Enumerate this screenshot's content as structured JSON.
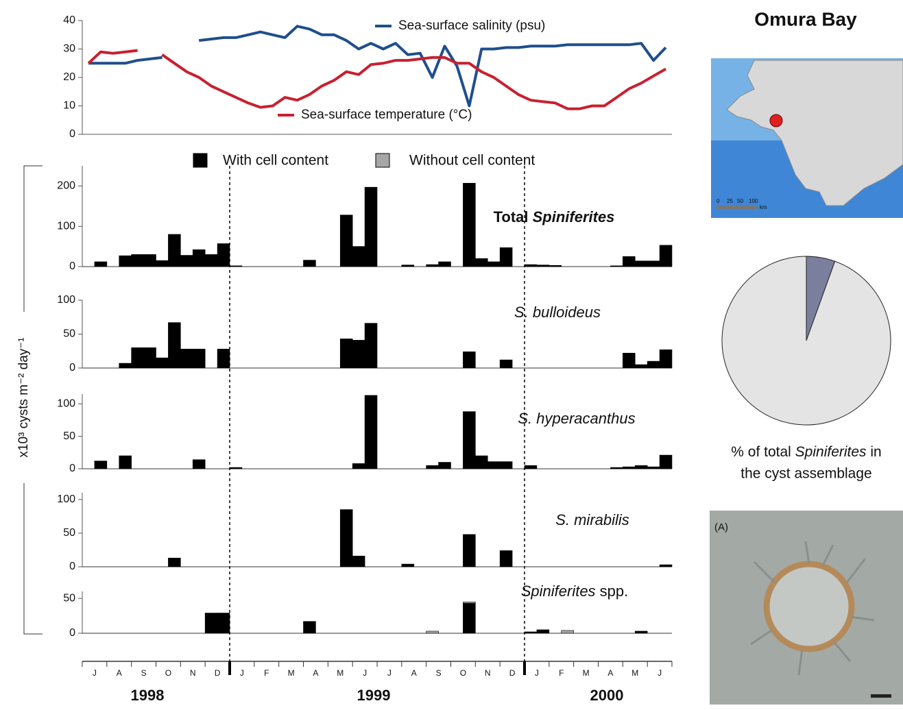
{
  "chart_data": [
    {
      "type": "line",
      "ylim": [
        0,
        40
      ],
      "yticks": [
        0,
        10,
        20,
        30,
        40
      ],
      "series": [
        {
          "name": "Sea-surface salinity (psu)",
          "color": "#1f4e8c",
          "values": [
            25,
            25,
            25,
            25,
            26,
            26.5,
            27,
            null,
            null,
            33,
            33.5,
            34,
            34,
            35,
            36,
            35,
            34,
            38,
            37,
            35,
            35,
            33,
            30,
            32,
            30,
            32,
            28,
            28.5,
            20,
            31,
            24,
            10,
            30,
            30,
            30.5,
            30.5,
            31,
            31,
            31,
            31.5,
            31.5,
            31.5,
            31.5,
            31.5,
            31.5,
            32,
            26,
            30.5
          ]
        },
        {
          "name": "Sea-surface temperature (°C)",
          "color": "#c8202e",
          "values": [
            25,
            29,
            28.5,
            29,
            29.5,
            null,
            28,
            25,
            22,
            20,
            17,
            15,
            13,
            11,
            9.5,
            10,
            13,
            12,
            14,
            17,
            19,
            22,
            21,
            24.5,
            25,
            26,
            26,
            26.5,
            27,
            27,
            25,
            25,
            22,
            20,
            17,
            14,
            12,
            11.5,
            11,
            9,
            9,
            10,
            10,
            13,
            16,
            18,
            20.5,
            23
          ]
        }
      ]
    },
    {
      "type": "bar",
      "categories": [
        "J",
        null,
        "A",
        null,
        "S",
        null,
        "O",
        null,
        "N",
        null,
        "D",
        null,
        "J",
        null,
        "F",
        null,
        "M",
        null,
        "A",
        null,
        "M",
        null,
        "J",
        null,
        "J",
        null,
        "A",
        null,
        "S",
        null,
        "O",
        null,
        "N",
        null,
        "D",
        null,
        "J",
        null,
        "F",
        null,
        "M",
        null,
        "A",
        null,
        "M",
        null,
        "J",
        null
      ],
      "years": [
        "1998",
        "1999",
        "2000"
      ],
      "y_label": "x10³ cysts m⁻² day⁻¹",
      "series": [
        {
          "name": "With cell content",
          "color": "#000000"
        },
        {
          "name": "Without cell content",
          "color": "#a6a6a6"
        }
      ],
      "panels": [
        {
          "label": [
            "Total",
            "Spiniferites"
          ],
          "label_italic": [
            false,
            true
          ],
          "label_bold": true,
          "ylim": [
            0,
            250
          ],
          "yticks": [
            0,
            100,
            200
          ],
          "series": [
            {
              "values": [
                0,
                12,
                0,
                27,
                30,
                30,
                15,
                80,
                28,
                42,
                30,
                57,
                2,
                0,
                0,
                0,
                0,
                0,
                16,
                0,
                0,
                128,
                50,
                197,
                0,
                0,
                4,
                0,
                5,
                12,
                0,
                207,
                20,
                12,
                47,
                0,
                5,
                4,
                3,
                0,
                0,
                0,
                0,
                2,
                25,
                14,
                14,
                53
              ]
            }
          ]
        },
        {
          "label": [
            "S. bulloideus"
          ],
          "label_italic": [
            true
          ],
          "label_bold": false,
          "ylim": [
            0,
            100
          ],
          "yticks": [
            0,
            50,
            100
          ],
          "series": [
            {
              "values": [
                0,
                0,
                0,
                7,
                30,
                30,
                15,
                67,
                28,
                28,
                0,
                28,
                0,
                0,
                0,
                0,
                0,
                0,
                0,
                0,
                0,
                43,
                41,
                66,
                0,
                0,
                0,
                0,
                0,
                0,
                0,
                24,
                0,
                0,
                12,
                0,
                0,
                0,
                0,
                0,
                0,
                0,
                0,
                0,
                22,
                5,
                10,
                27
              ]
            }
          ]
        },
        {
          "label": [
            "S. hyperacanthus"
          ],
          "label_italic": [
            true
          ],
          "label_bold": false,
          "ylim": [
            0,
            115
          ],
          "yticks": [
            0,
            50,
            100
          ],
          "series": [
            {
              "values": [
                0,
                12,
                0,
                20,
                0,
                0,
                0,
                0,
                0,
                14,
                0,
                0,
                2,
                0,
                0,
                0,
                0,
                0,
                0,
                0,
                0,
                0,
                8,
                113,
                0,
                0,
                0,
                0,
                5,
                10,
                0,
                88,
                20,
                11,
                11,
                0,
                5,
                0,
                0,
                0,
                0,
                0,
                0,
                2,
                3,
                5,
                3,
                21
              ]
            }
          ]
        },
        {
          "label": [
            "S. mirabilis"
          ],
          "label_italic": [
            true
          ],
          "label_bold": false,
          "ylim": [
            0,
            110
          ],
          "yticks": [
            0,
            50,
            100
          ],
          "series": [
            {
              "values": [
                0,
                0,
                0,
                0,
                0,
                0,
                0,
                13,
                0,
                0,
                0,
                0,
                0,
                0,
                0,
                0,
                0,
                0,
                0,
                0,
                0,
                85,
                16,
                0,
                0,
                0,
                4,
                0,
                0,
                0,
                0,
                48,
                0,
                0,
                24,
                0,
                0,
                0,
                0,
                0,
                0,
                0,
                0,
                0,
                0,
                0,
                0,
                3
              ]
            }
          ]
        },
        {
          "label": [
            "Spiniferites",
            "spp."
          ],
          "label_italic": [
            true,
            false
          ],
          "label_bold": false,
          "ylim": [
            0,
            60
          ],
          "yticks": [
            0,
            50
          ],
          "series": [
            {
              "values": [
                0,
                0,
                0,
                0,
                0,
                0,
                0,
                0,
                0,
                0,
                29,
                29,
                0,
                0,
                0,
                0,
                0,
                0,
                17,
                0,
                0,
                0,
                0,
                0,
                0,
                0,
                0,
                0,
                0,
                0,
                0,
                43,
                0,
                0,
                0,
                0,
                2,
                5,
                0,
                0,
                0,
                0,
                0,
                0,
                0,
                3,
                0,
                0
              ]
            },
            {
              "values": [
                0,
                0,
                0,
                0,
                0,
                0,
                0,
                0,
                0,
                0,
                0,
                0,
                0,
                0,
                0,
                0,
                0,
                0,
                0,
                0,
                0,
                0,
                0,
                0,
                0,
                0,
                0,
                0,
                3,
                0,
                0,
                2,
                0,
                0,
                0,
                0,
                0,
                0,
                0,
                4,
                0,
                0,
                0,
                0,
                0,
                0,
                0,
                0
              ]
            }
          ]
        }
      ]
    },
    {
      "type": "pie",
      "values": [
        5.5,
        94.5
      ],
      "colors": [
        "#7b7f9e",
        "#e4e4e4"
      ],
      "caption": [
        "% of total",
        "Spiniferites",
        "in",
        "the cyst assemblage"
      ]
    }
  ],
  "site": "Omura Bay",
  "photo_label": "(A)",
  "map_scale": [
    "0",
    "25",
    "50",
    "100",
    "km"
  ]
}
